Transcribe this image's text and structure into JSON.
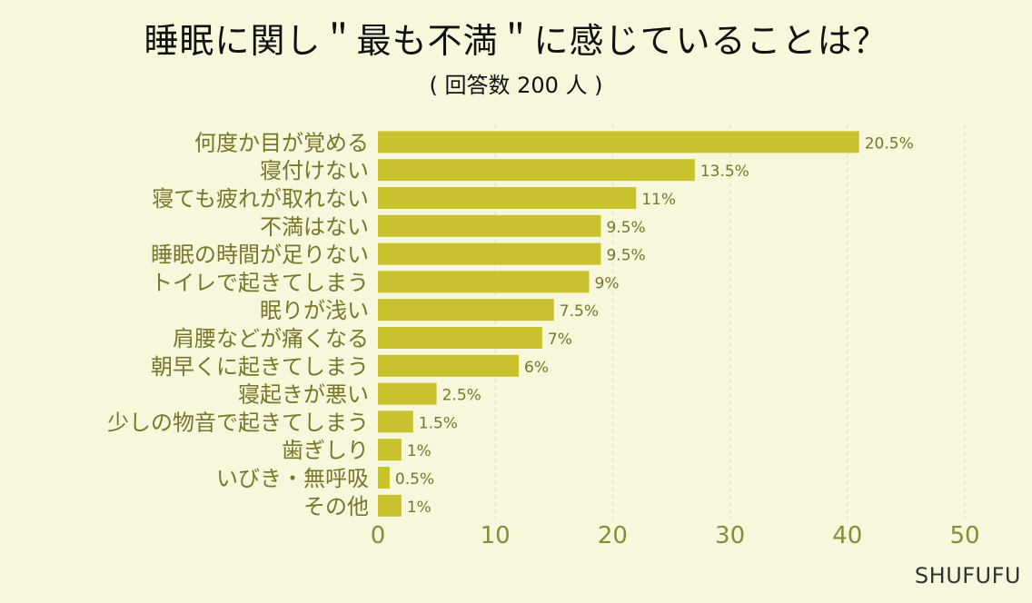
{
  "title": "睡眠に関し＂最も不満＂に感じていることは？",
  "subtitle": "( 回答数 200 人 )",
  "watermark": "SHUFUFU",
  "colors": {
    "bar": "#c9c22f",
    "background": "#f7f7dc",
    "label": "#77772a"
  },
  "chart_data": {
    "type": "bar",
    "orientation": "horizontal",
    "categories": [
      "何度か目が覚める",
      "寝付けない",
      "寝ても疲れが取れない",
      "不満はない",
      "睡眠の時間が足りない",
      "トイレで起きてしまう",
      "眠りが浅い",
      "肩腰などが痛くなる",
      "朝早くに起きてしまう",
      "寝起きが悪い",
      "少しの物音で起きてしまう",
      "歯ぎしり",
      "いびき・無呼吸",
      "その他"
    ],
    "values": [
      41,
      27,
      22,
      19,
      19,
      18,
      15,
      14,
      12,
      5,
      3,
      2,
      1,
      2
    ],
    "data_labels": [
      "20.5%",
      "13.5%",
      "11%",
      "9.5%",
      "9.5%",
      "9%",
      "7.5%",
      "7%",
      "6%",
      "2.5%",
      "1.5%",
      "1%",
      "0.5%",
      "1%"
    ],
    "xlim": [
      0,
      50
    ],
    "xticks": [
      0,
      10,
      20,
      30,
      40,
      50
    ],
    "grid": true
  }
}
